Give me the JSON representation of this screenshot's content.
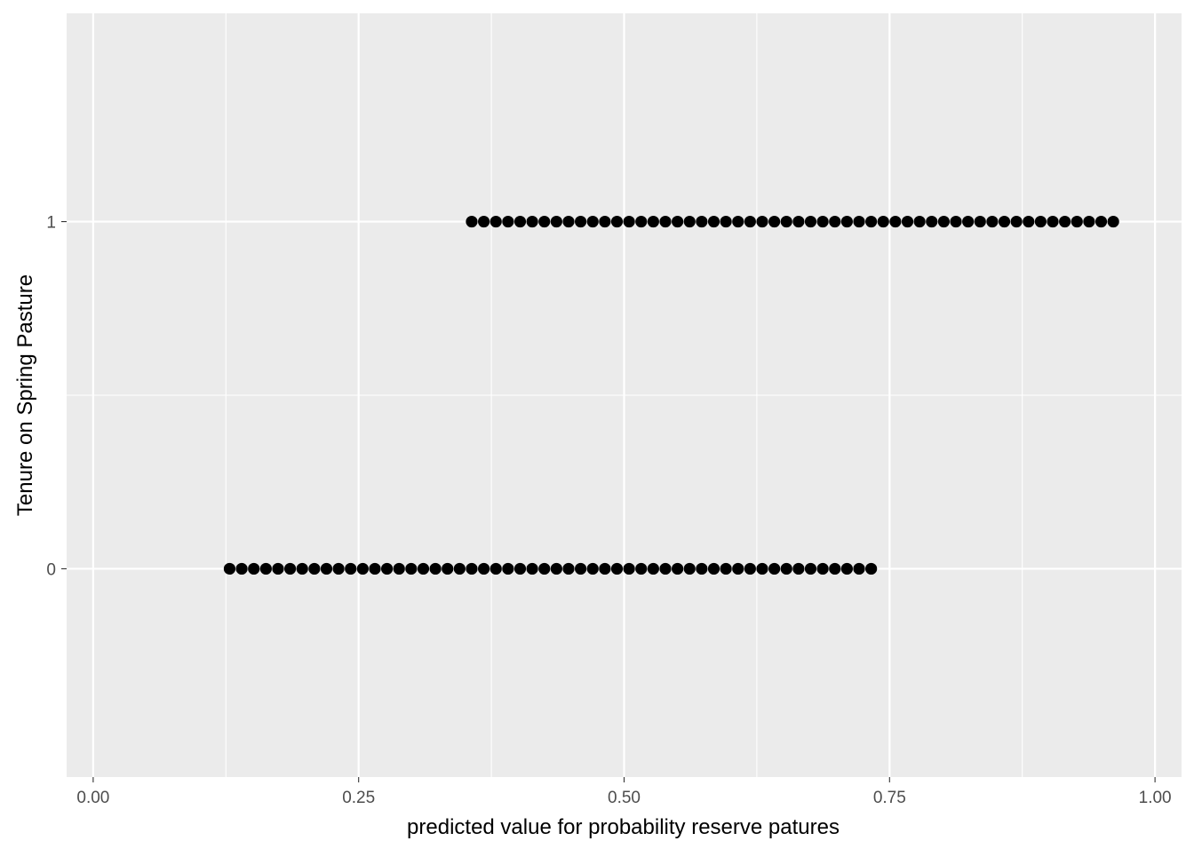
{
  "chart_data": {
    "type": "scatter",
    "title": "",
    "xlabel": "predicted value for probability reserve patures",
    "ylabel": "Tenure on Spring Pasture",
    "xlim": [
      -0.025,
      1.025
    ],
    "ylim": [
      -0.6,
      1.6
    ],
    "x_ticks": [
      0,
      0.25,
      0.5,
      0.75,
      1.0
    ],
    "x_tick_labels": [
      "0.00",
      "0.25",
      "0.50",
      "0.75",
      "1.00"
    ],
    "y_ticks": [
      0,
      1
    ],
    "y_tick_labels": [
      "0",
      "1"
    ],
    "grid": true,
    "legend": "none",
    "colors": {
      "panel": "#ebebeb",
      "grid": "#ffffff",
      "point": "#000000",
      "tick_label": "#4d4d4d",
      "tick": "#333333"
    },
    "series": [
      {
        "y": 0,
        "x_start": 0.1285,
        "x_end": 0.7365,
        "step": 0.0114,
        "count": 54
      },
      {
        "y": 1,
        "x_start": 0.3565,
        "x_end": 0.9665,
        "step": 0.0114,
        "count": 54
      }
    ]
  }
}
